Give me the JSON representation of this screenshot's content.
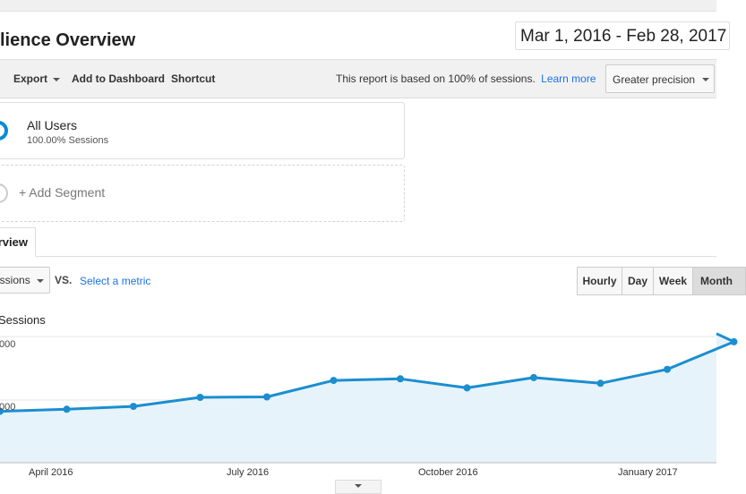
{
  "header": {
    "title": "lience Overview",
    "date_range": "Mar 1, 2016 - Feb 28, 2017"
  },
  "toolbar": {
    "export_label": "Export",
    "add_to_dashboard_label": "Add to Dashboard",
    "shortcut_label": "Shortcut",
    "report_note": "This report is based on 100% of sessions.",
    "learn_more_label": "Learn more",
    "precision_label": "Greater precision"
  },
  "segments": {
    "primary_name": "All Users",
    "primary_sub": "100.00% Sessions",
    "add_label": "+ Add Segment"
  },
  "tabs": {
    "active_label": "rview"
  },
  "metric": {
    "selected": "essions",
    "vs_label": "VS.",
    "select_metric_label": "Select a metric"
  },
  "granularity": [
    "Hourly",
    "Day",
    "Week",
    "Month"
  ],
  "colors": {
    "line": "#1b8ed0",
    "fill": "#e7f3fb",
    "link": "#1a73e8"
  },
  "chart_data": {
    "type": "area",
    "legend": "Sessions",
    "ytick_labels": [
      ",000",
      ",000"
    ],
    "xtick_labels": [
      "April 2016",
      "July 2016",
      "October 2016",
      "January 2017"
    ],
    "x": [
      "Mar 2016",
      "Apr 2016",
      "May 2016",
      "Jun 2016",
      "Jul 2016",
      "Aug 2016",
      "Sep 2016",
      "Oct 2016",
      "Nov 2016",
      "Dec 2016",
      "Jan 2017",
      "Feb 2017"
    ],
    "values": [
      1.25,
      1.3,
      1.37,
      1.59,
      1.6,
      2.0,
      2.04,
      1.82,
      2.07,
      1.93,
      2.27,
      2.94
    ],
    "ylim": [
      0,
      3.2
    ]
  }
}
